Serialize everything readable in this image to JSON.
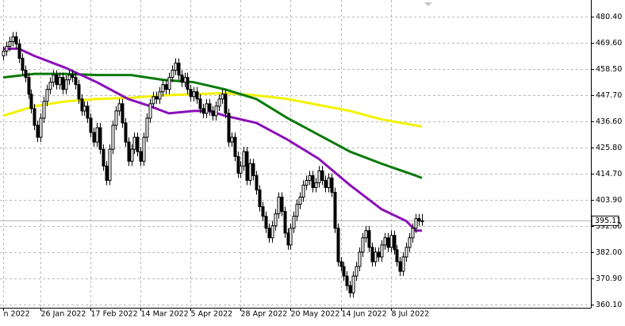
{
  "chart_data": {
    "type": "candlestick",
    "open": [
      464,
      466,
      468,
      470,
      472,
      469,
      463,
      458,
      455,
      448,
      442,
      435,
      430,
      438,
      445,
      450,
      453,
      456,
      452,
      455,
      450,
      454,
      456,
      455,
      452,
      446,
      441,
      443,
      438,
      432,
      428,
      434,
      425,
      418,
      412,
      425,
      435,
      441,
      444,
      436,
      428,
      420,
      425,
      430,
      424,
      420,
      430,
      438,
      444,
      447,
      446,
      449,
      452,
      450,
      455,
      458,
      461,
      456,
      453,
      455,
      450,
      447,
      449,
      446,
      442,
      440,
      444,
      441,
      439,
      443,
      446,
      448,
      440,
      428,
      430,
      422,
      415,
      418,
      424,
      412,
      419,
      414,
      408,
      401,
      397,
      392,
      388,
      393,
      398,
      405,
      399,
      390,
      385,
      392,
      397,
      402,
      405,
      410,
      412,
      414,
      409,
      411,
      416,
      412,
      409,
      413,
      407,
      392,
      378,
      376,
      372,
      368,
      365,
      372,
      376,
      382,
      388,
      391,
      384,
      378,
      382,
      380,
      385,
      388,
      384,
      389,
      383,
      378,
      374,
      380,
      384,
      388,
      392,
      396,
      395
    ],
    "high": [
      468,
      470,
      472,
      474,
      474,
      471,
      465,
      460,
      457,
      450,
      444,
      437,
      440,
      447,
      452,
      455,
      458,
      458,
      457,
      457,
      456,
      458,
      458,
      457,
      454,
      448,
      445,
      445,
      440,
      434,
      436,
      436,
      427,
      420,
      427,
      437,
      443,
      446,
      446,
      438,
      430,
      427,
      432,
      432,
      426,
      432,
      440,
      446,
      449,
      449,
      451,
      454,
      454,
      457,
      460,
      463,
      463,
      458,
      457,
      457,
      452,
      451,
      451,
      448,
      444,
      446,
      446,
      443,
      445,
      448,
      450,
      450,
      442,
      432,
      432,
      424,
      420,
      426,
      426,
      421,
      421,
      416,
      410,
      403,
      399,
      394,
      395,
      400,
      407,
      407,
      401,
      392,
      394,
      399,
      404,
      407,
      412,
      414,
      416,
      416,
      413,
      418,
      418,
      414,
      415,
      415,
      409,
      394,
      380,
      378,
      374,
      370,
      374,
      378,
      384,
      390,
      393,
      393,
      386,
      384,
      384,
      387,
      390,
      390,
      391,
      391,
      385,
      380,
      382,
      386,
      390,
      394,
      398,
      398,
      398
    ],
    "low": [
      462,
      464,
      466,
      468,
      467,
      461,
      456,
      453,
      446,
      440,
      433,
      428,
      428,
      436,
      443,
      448,
      451,
      450,
      450,
      448,
      448,
      452,
      453,
      450,
      444,
      439,
      439,
      436,
      430,
      426,
      426,
      423,
      416,
      410,
      410,
      423,
      433,
      439,
      434,
      426,
      418,
      418,
      423,
      422,
      418,
      418,
      428,
      436,
      442,
      444,
      444,
      447,
      448,
      448,
      453,
      456,
      454,
      451,
      451,
      448,
      445,
      445,
      444,
      440,
      438,
      438,
      439,
      437,
      437,
      441,
      444,
      438,
      426,
      426,
      420,
      413,
      413,
      416,
      410,
      410,
      412,
      406,
      399,
      395,
      390,
      386,
      386,
      391,
      396,
      397,
      388,
      383,
      383,
      390,
      395,
      400,
      403,
      408,
      410,
      407,
      407,
      409,
      410,
      407,
      407,
      405,
      390,
      376,
      374,
      370,
      366,
      363,
      363,
      370,
      374,
      380,
      386,
      382,
      376,
      376,
      378,
      378,
      383,
      382,
      382,
      381,
      376,
      372,
      372,
      378,
      382,
      386,
      390,
      393,
      393
    ],
    "close": [
      466,
      468,
      470,
      472,
      469,
      463,
      458,
      455,
      448,
      442,
      435,
      430,
      438,
      445,
      450,
      453,
      456,
      452,
      455,
      450,
      454,
      456,
      455,
      452,
      446,
      441,
      443,
      438,
      432,
      428,
      434,
      425,
      418,
      412,
      425,
      435,
      441,
      444,
      436,
      428,
      420,
      425,
      430,
      424,
      420,
      430,
      438,
      444,
      447,
      446,
      449,
      452,
      450,
      455,
      458,
      461,
      456,
      453,
      455,
      450,
      447,
      449,
      446,
      442,
      440,
      444,
      441,
      439,
      443,
      446,
      448,
      440,
      428,
      430,
      422,
      415,
      418,
      424,
      412,
      419,
      414,
      408,
      401,
      397,
      392,
      388,
      393,
      398,
      405,
      399,
      390,
      385,
      392,
      397,
      402,
      405,
      410,
      412,
      414,
      409,
      411,
      416,
      412,
      409,
      413,
      407,
      392,
      378,
      376,
      372,
      368,
      365,
      372,
      376,
      382,
      388,
      391,
      384,
      378,
      382,
      380,
      385,
      388,
      384,
      389,
      383,
      378,
      374,
      380,
      384,
      388,
      392,
      396,
      395,
      395.11
    ],
    "color": "#000000",
    "moving_averages": [
      {
        "color": "#f2f200",
        "x": [
          0,
          10,
          20,
          30,
          41,
          51,
          61,
          71,
          81,
          91,
          101,
          111,
          121,
          134
        ],
        "values": [
          439,
          443,
          445,
          446,
          446.5,
          447.5,
          448,
          448.5,
          447.5,
          446,
          443.5,
          441,
          437.5,
          434.5
        ]
      },
      {
        "color": "#0a7a0a",
        "x": [
          0,
          10,
          20,
          30,
          41,
          51,
          61,
          71,
          81,
          91,
          101,
          111,
          121,
          132,
          134
        ],
        "values": [
          455,
          456.5,
          456.5,
          456,
          456,
          454,
          453,
          450,
          446,
          438,
          431,
          424,
          419,
          414,
          413
        ]
      },
      {
        "color": "#8a10b8",
        "x": [
          0,
          5,
          10,
          20,
          30,
          40,
          47,
          53,
          61,
          66,
          71,
          81,
          91,
          101,
          111,
          121,
          129,
          132,
          134
        ],
        "values": [
          467,
          467,
          464,
          459,
          453,
          446,
          443,
          440,
          441,
          441,
          439,
          436,
          429,
          421,
          410,
          400,
          395,
          391,
          391
        ]
      }
    ],
    "ylim": [
      358.77,
      487.36
    ],
    "yticks": [
      {
        "value": 480.4,
        "label": "480.40"
      },
      {
        "value": 469.6,
        "label": "469.60"
      },
      {
        "value": 458.5,
        "label": "458.50"
      },
      {
        "value": 447.7,
        "label": "447.70"
      },
      {
        "value": 436.6,
        "label": "436.60"
      },
      {
        "value": 425.8,
        "label": "425.80"
      },
      {
        "value": 414.7,
        "label": "414.70"
      },
      {
        "value": 403.9,
        "label": "403.90"
      },
      {
        "value": 392.8,
        "label": "392.80"
      },
      {
        "value": 382,
        "label": "382.00"
      },
      {
        "value": 370.9,
        "label": "370.90"
      },
      {
        "value": 360.1,
        "label": "360.10"
      }
    ],
    "xticks": [
      {
        "value": 0,
        "label": "n 2022"
      },
      {
        "value": 12,
        "label": "26 Jan 2022"
      },
      {
        "value": 28,
        "label": "17 Feb 2022"
      },
      {
        "value": 44,
        "label": "14 Mar 2022"
      },
      {
        "value": 60,
        "label": "5 Apr 2022"
      },
      {
        "value": 76,
        "label": "28 Apr 2022"
      },
      {
        "value": 92,
        "label": "20 May 2022"
      },
      {
        "value": 108,
        "label": "14 Jun 2022"
      },
      {
        "value": 124,
        "label": "8 Jul 2022"
      }
    ],
    "grid": true,
    "last_price": {
      "value": 395.11,
      "label": "395.11"
    }
  }
}
